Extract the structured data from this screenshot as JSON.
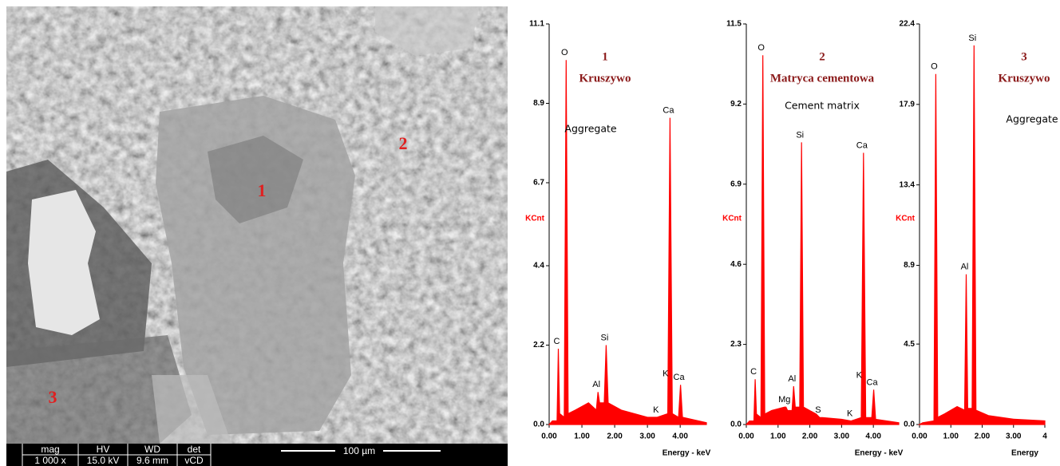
{
  "image": {
    "markers": [
      "1",
      "2",
      "3"
    ],
    "info_bar": {
      "headers": [
        "mag",
        "HV",
        "WD",
        "det"
      ],
      "values": [
        "1 000 x",
        "15.0 kV",
        "9.6 mm",
        "vCD"
      ],
      "scale": "100 µm"
    }
  },
  "chart_data": [
    {
      "type": "spectrum",
      "title": "1",
      "subtitle": "Kruszywo",
      "annotation": "Aggregate",
      "xlabel": "Energy - keV",
      "ylabel": "KCnt",
      "color": "#ff0000",
      "xlim": [
        0,
        4.8
      ],
      "ylim": [
        0,
        11.1
      ],
      "xticks": [
        {
          "value": 0,
          "label": "0.00"
        },
        {
          "value": 1,
          "label": "1.00"
        },
        {
          "value": 2,
          "label": "2.00"
        },
        {
          "value": 3,
          "label": "3.00"
        },
        {
          "value": 4,
          "label": "4.00"
        }
      ],
      "yticks": [
        {
          "value": 0,
          "label": "0.0"
        },
        2.2,
        4.4,
        6.7,
        8.9,
        11.1
      ],
      "x": [
        0,
        0.1,
        0.24,
        0.28,
        0.32,
        0.46,
        0.52,
        0.58,
        0.8,
        1.2,
        1.44,
        1.49,
        1.54,
        1.68,
        1.74,
        1.8,
        2.2,
        3.0,
        3.3,
        3.62,
        3.69,
        3.76,
        3.95,
        4.01,
        4.07,
        4.8
      ],
      "values": [
        0,
        0.1,
        0.1,
        2.1,
        0.3,
        0.2,
        10.1,
        0.3,
        0.4,
        0.6,
        0.4,
        0.9,
        0.6,
        0.6,
        2.2,
        0.6,
        0.4,
        0.2,
        0.2,
        0.3,
        8.5,
        0.3,
        0.2,
        1.1,
        0.2,
        0.05
      ],
      "peak_labels": [
        {
          "label": "C",
          "x": 0.28,
          "value": 2.1
        },
        {
          "label": "O",
          "x": 0.52,
          "value": 10.1
        },
        {
          "label": "Al",
          "x": 1.49,
          "value": 0.9
        },
        {
          "label": "Si",
          "x": 1.74,
          "value": 2.2
        },
        {
          "label": "K",
          "x": 3.31,
          "value": 0.2
        },
        {
          "label": "K",
          "x": 3.6,
          "value": 1.2
        },
        {
          "label": "Ca",
          "x": 3.69,
          "value": 8.5
        },
        {
          "label": "Ca",
          "x": 4.01,
          "value": 1.1
        }
      ]
    },
    {
      "type": "spectrum",
      "title": "2",
      "subtitle": "Matryca cementowa",
      "annotation": "Cement matrix",
      "xlabel": "Energy - keV",
      "ylabel": "KCnt",
      "color": "#ff0000",
      "xlim": [
        0,
        4.8
      ],
      "ylim": [
        0,
        11.5
      ],
      "xticks": [
        {
          "value": 0,
          "label": "0.00"
        },
        {
          "value": 1,
          "label": "1.00"
        },
        {
          "value": 2,
          "label": "2.00"
        },
        {
          "value": 3,
          "label": "3.00"
        },
        {
          "value": 4,
          "label": "4.00"
        }
      ],
      "yticks": [
        {
          "value": 0,
          "label": "0.0"
        },
        2.3,
        4.6,
        6.9,
        9.2,
        11.5
      ],
      "x": [
        0,
        0.1,
        0.24,
        0.28,
        0.32,
        0.46,
        0.52,
        0.58,
        0.8,
        1.2,
        1.25,
        1.3,
        1.44,
        1.49,
        1.54,
        1.68,
        1.74,
        1.8,
        2.2,
        2.31,
        2.4,
        3.0,
        3.3,
        3.62,
        3.69,
        3.76,
        3.95,
        4.01,
        4.07,
        4.8
      ],
      "values": [
        0,
        0.1,
        0.1,
        1.3,
        0.3,
        0.2,
        10.6,
        0.3,
        0.4,
        0.5,
        0.5,
        0.4,
        0.4,
        1.1,
        0.5,
        0.5,
        8.1,
        0.5,
        0.3,
        0.2,
        0.2,
        0.15,
        0.1,
        0.2,
        7.8,
        0.2,
        0.2,
        1.0,
        0.15,
        0.05
      ],
      "peak_labels": [
        {
          "label": "C",
          "x": 0.28,
          "value": 1.3
        },
        {
          "label": "O",
          "x": 0.52,
          "value": 10.6
        },
        {
          "label": "Mg",
          "x": 1.25,
          "value": 0.5
        },
        {
          "label": "Al",
          "x": 1.49,
          "value": 1.1
        },
        {
          "label": "Si",
          "x": 1.74,
          "value": 8.1
        },
        {
          "label": "S",
          "x": 2.31,
          "value": 0.2
        },
        {
          "label": "K",
          "x": 3.31,
          "value": 0.1
        },
        {
          "label": "K",
          "x": 3.6,
          "value": 1.2
        },
        {
          "label": "Ca",
          "x": 3.69,
          "value": 7.8
        },
        {
          "label": "Ca",
          "x": 4.01,
          "value": 1.0
        }
      ]
    },
    {
      "type": "spectrum",
      "title": "3",
      "subtitle": "Kruszywo",
      "annotation": "Aggregate",
      "xlabel": "Energy",
      "ylabel": "KCnt",
      "color": "#ff0000",
      "xlim": [
        0,
        4
      ],
      "ylim": [
        0,
        22.4
      ],
      "xticks": [
        {
          "value": 0,
          "label": "0.00"
        },
        {
          "value": 1,
          "label": "1.00"
        },
        {
          "value": 2,
          "label": "2.00"
        },
        {
          "value": 3,
          "label": "3.00"
        },
        4
      ],
      "yticks": [
        {
          "value": 0,
          "label": "0.0"
        },
        4.5,
        8.9,
        13.4,
        17.9,
        22.4
      ],
      "x": [
        0,
        0.1,
        0.46,
        0.52,
        0.58,
        0.8,
        1.2,
        1.44,
        1.49,
        1.54,
        1.68,
        1.74,
        1.8,
        2.2,
        3.0,
        4.0
      ],
      "values": [
        0,
        0.1,
        0.2,
        19.6,
        0.4,
        0.6,
        1.0,
        0.8,
        8.4,
        0.9,
        0.9,
        21.2,
        0.8,
        0.5,
        0.3,
        0.2
      ],
      "peak_labels": [
        {
          "label": "O",
          "x": 0.52,
          "value": 19.6
        },
        {
          "label": "Al",
          "x": 1.49,
          "value": 8.4
        },
        {
          "label": "Si",
          "x": 1.74,
          "value": 21.2
        }
      ]
    }
  ]
}
